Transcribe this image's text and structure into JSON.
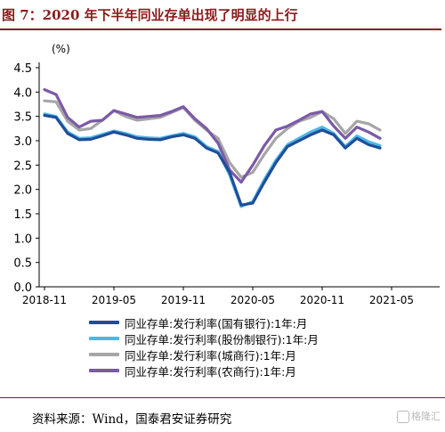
{
  "title": "图 7：2020 年下半年同业存单出现了明显的上行",
  "unit": "(%)",
  "source": "资料来源：Wind，国泰君安证券研究",
  "watermark": "格隆汇",
  "chart_data": {
    "type": "line",
    "title": "",
    "xlabel": "",
    "ylabel": "(%)",
    "ylim": [
      0.0,
      4.5
    ],
    "yticks": [
      "0.0",
      "0.5",
      "1.0",
      "1.5",
      "2.0",
      "2.5",
      "3.0",
      "3.5",
      "4.0",
      "4.5"
    ],
    "xlim": [
      "2018-11",
      "2021-04"
    ],
    "xticks": [
      "2018-11",
      "2019-05",
      "2019-11",
      "2020-05",
      "2020-11",
      "2021-05"
    ],
    "grid": false,
    "legend_position": "bottom",
    "series": [
      {
        "name": "同业存单:发行利率(国有银行):1年:月",
        "color": "#1f4e9a",
        "points": [
          [
            "2018-11",
            3.52
          ],
          [
            "2018-12",
            3.48
          ],
          [
            "2019-01",
            3.15
          ],
          [
            "2019-02",
            3.02
          ],
          [
            "2019-03",
            3.03
          ],
          [
            "2019-04",
            3.1
          ],
          [
            "2019-05",
            3.18
          ],
          [
            "2019-06",
            3.12
          ],
          [
            "2019-07",
            3.05
          ],
          [
            "2019-08",
            3.03
          ],
          [
            "2019-09",
            3.02
          ],
          [
            "2019-10",
            3.08
          ],
          [
            "2019-11",
            3.12
          ],
          [
            "2019-12",
            3.05
          ],
          [
            "2020-01",
            2.85
          ],
          [
            "2020-02",
            2.75
          ],
          [
            "2020-03",
            2.35
          ],
          [
            "2020-04",
            1.68
          ],
          [
            "2020-05",
            1.72
          ],
          [
            "2020-06",
            2.15
          ],
          [
            "2020-07",
            2.55
          ],
          [
            "2020-08",
            2.88
          ],
          [
            "2020-09",
            3.0
          ],
          [
            "2020-10",
            3.12
          ],
          [
            "2020-11",
            3.22
          ],
          [
            "2020-12",
            3.12
          ],
          [
            "2021-01",
            2.85
          ],
          [
            "2021-02",
            3.05
          ],
          [
            "2021-03",
            2.92
          ],
          [
            "2021-04",
            2.85
          ]
        ]
      },
      {
        "name": "同业存单:发行利率(股份制银行):1年:月",
        "color": "#4fb6e6",
        "points": [
          [
            "2018-11",
            3.55
          ],
          [
            "2018-12",
            3.5
          ],
          [
            "2019-01",
            3.18
          ],
          [
            "2019-02",
            3.05
          ],
          [
            "2019-03",
            3.06
          ],
          [
            "2019-04",
            3.13
          ],
          [
            "2019-05",
            3.2
          ],
          [
            "2019-06",
            3.15
          ],
          [
            "2019-07",
            3.08
          ],
          [
            "2019-08",
            3.06
          ],
          [
            "2019-09",
            3.05
          ],
          [
            "2019-10",
            3.1
          ],
          [
            "2019-11",
            3.15
          ],
          [
            "2019-12",
            3.08
          ],
          [
            "2020-01",
            2.88
          ],
          [
            "2020-02",
            2.78
          ],
          [
            "2020-03",
            2.3
          ],
          [
            "2020-04",
            1.65
          ],
          [
            "2020-05",
            1.75
          ],
          [
            "2020-06",
            2.2
          ],
          [
            "2020-07",
            2.6
          ],
          [
            "2020-08",
            2.92
          ],
          [
            "2020-09",
            3.05
          ],
          [
            "2020-10",
            3.18
          ],
          [
            "2020-11",
            3.28
          ],
          [
            "2020-12",
            3.15
          ],
          [
            "2021-01",
            2.88
          ],
          [
            "2021-02",
            3.1
          ],
          [
            "2021-03",
            2.98
          ],
          [
            "2021-04",
            2.9
          ]
        ]
      },
      {
        "name": "同业存单:发行利率(城商行):1年:月",
        "color": "#a6a6a6",
        "points": [
          [
            "2018-11",
            3.82
          ],
          [
            "2018-12",
            3.8
          ],
          [
            "2019-01",
            3.4
          ],
          [
            "2019-02",
            3.22
          ],
          [
            "2019-03",
            3.25
          ],
          [
            "2019-04",
            3.42
          ],
          [
            "2019-05",
            3.62
          ],
          [
            "2019-06",
            3.5
          ],
          [
            "2019-07",
            3.42
          ],
          [
            "2019-08",
            3.45
          ],
          [
            "2019-09",
            3.48
          ],
          [
            "2019-10",
            3.58
          ],
          [
            "2019-11",
            3.68
          ],
          [
            "2019-12",
            3.42
          ],
          [
            "2020-01",
            3.22
          ],
          [
            "2020-02",
            3.05
          ],
          [
            "2020-03",
            2.55
          ],
          [
            "2020-04",
            2.25
          ],
          [
            "2020-05",
            2.35
          ],
          [
            "2020-06",
            2.72
          ],
          [
            "2020-07",
            3.05
          ],
          [
            "2020-08",
            3.25
          ],
          [
            "2020-09",
            3.4
          ],
          [
            "2020-10",
            3.48
          ],
          [
            "2020-11",
            3.6
          ],
          [
            "2020-12",
            3.45
          ],
          [
            "2021-01",
            3.15
          ],
          [
            "2021-02",
            3.4
          ],
          [
            "2021-03",
            3.35
          ],
          [
            "2021-04",
            3.22
          ]
        ]
      },
      {
        "name": "同业存单:发行利率(农商行):1年:月",
        "color": "#7b5aa6",
        "points": [
          [
            "2018-11",
            4.05
          ],
          [
            "2018-12",
            3.95
          ],
          [
            "2019-01",
            3.48
          ],
          [
            "2019-02",
            3.28
          ],
          [
            "2019-03",
            3.4
          ],
          [
            "2019-04",
            3.42
          ],
          [
            "2019-05",
            3.62
          ],
          [
            "2019-06",
            3.55
          ],
          [
            "2019-07",
            3.48
          ],
          [
            "2019-08",
            3.5
          ],
          [
            "2019-09",
            3.52
          ],
          [
            "2019-10",
            3.6
          ],
          [
            "2019-11",
            3.7
          ],
          [
            "2019-12",
            3.45
          ],
          [
            "2020-01",
            3.25
          ],
          [
            "2020-02",
            2.95
          ],
          [
            "2020-03",
            2.4
          ],
          [
            "2020-04",
            2.15
          ],
          [
            "2020-05",
            2.5
          ],
          [
            "2020-06",
            2.9
          ],
          [
            "2020-07",
            3.22
          ],
          [
            "2020-08",
            3.3
          ],
          [
            "2020-09",
            3.42
          ],
          [
            "2020-10",
            3.55
          ],
          [
            "2020-11",
            3.6
          ],
          [
            "2020-12",
            3.3
          ],
          [
            "2021-01",
            3.05
          ],
          [
            "2021-02",
            3.28
          ],
          [
            "2021-03",
            3.18
          ],
          [
            "2021-04",
            3.05
          ]
        ]
      }
    ]
  }
}
